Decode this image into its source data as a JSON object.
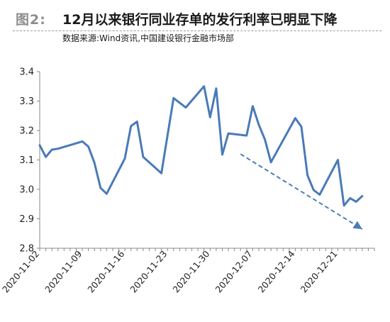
{
  "header": {
    "figure_label": "图2:",
    "title": "12月以来银行同业存单的发行利率已明显下降",
    "source": "数据来源:Wind资讯,中国建设银行金融市场部"
  },
  "chart_data": {
    "type": "line",
    "title": "12月以来银行同业存单的发行利率已明显下降",
    "xlabel": "",
    "ylabel": "",
    "ylim": [
      2.8,
      3.4
    ],
    "yticks": [
      "2.8",
      "2.9",
      "3.0",
      "3.1",
      "3.2",
      "3.3",
      "3.4"
    ],
    "xticks": [
      "2020-11-02",
      "2020-11-09",
      "2020-11-16",
      "2020-11-23",
      "2020-11-30",
      "2020-12-07",
      "2020-12-14",
      "2020-12-21"
    ],
    "xlim": [
      "2020-11-02",
      "2020-12-27"
    ],
    "grid": false,
    "line_color": "#4a7ab8",
    "trend_color": "#4a7ab8",
    "series": [
      {
        "x": [
          "2020-11-02",
          "2020-11-03",
          "2020-11-04",
          "2020-11-05",
          "2020-11-09",
          "2020-11-10",
          "2020-11-11",
          "2020-11-12",
          "2020-11-13",
          "2020-11-16",
          "2020-11-17",
          "2020-11-18",
          "2020-11-19",
          "2020-11-22",
          "2020-11-24",
          "2020-11-26",
          "2020-11-29",
          "2020-11-30",
          "2020-12-01",
          "2020-12-02",
          "2020-12-03",
          "2020-12-06",
          "2020-12-07",
          "2020-12-08",
          "2020-12-09",
          "2020-12-10",
          "2020-12-14",
          "2020-12-15",
          "2020-12-16",
          "2020-12-17",
          "2020-12-18",
          "2020-12-21",
          "2020-12-22",
          "2020-12-23",
          "2020-12-24",
          "2020-12-25"
        ],
        "values": [
          3.15,
          3.11,
          3.135,
          3.138,
          3.163,
          3.145,
          3.09,
          3.005,
          2.985,
          3.105,
          3.215,
          3.23,
          3.11,
          3.055,
          3.31,
          3.278,
          3.35,
          3.245,
          3.343,
          3.118,
          3.19,
          3.183,
          3.283,
          3.22,
          3.17,
          3.092,
          3.242,
          3.213,
          3.048,
          2.998,
          2.982,
          3.1,
          2.945,
          2.97,
          2.958,
          2.977
        ]
      }
    ],
    "trend": {
      "x": [
        "2020-12-05",
        "2020-12-25"
      ],
      "values": [
        3.12,
        2.865
      ]
    }
  }
}
